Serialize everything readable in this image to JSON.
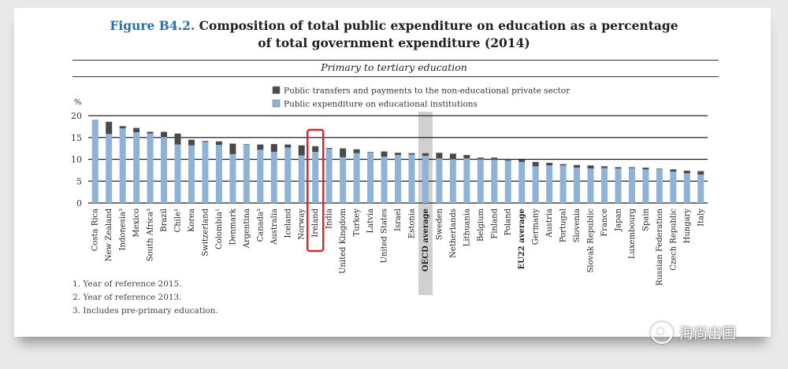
{
  "figure": {
    "label": "Figure B4.2.",
    "title_line1": "Composition of total public expenditure on education as a percentage",
    "title_line2": "of total government expenditure (2014)",
    "subtitle": "Primary to tertiary education"
  },
  "notes": [
    "1. Year of reference 2015.",
    "2. Year of reference 2013.",
    "3. Includes pre-primary education."
  ],
  "watermark": "海尚出国",
  "colors": {
    "institutions": "#8fb3d6",
    "transfers": "#4a4a4a",
    "highlight": "#d9262c",
    "oecd_band": "#d0d0d0"
  },
  "chart_data": {
    "type": "bar",
    "stacked": true,
    "ylabel": "%",
    "ylim": [
      0,
      20
    ],
    "yticks": [
      0,
      5,
      10,
      15,
      20
    ],
    "grid": "horizontal",
    "legend_position": "top-left",
    "highlighted_category": "Ireland",
    "shaded_category": "OECD average",
    "bold_categories": [
      "OECD average",
      "EU22 average"
    ],
    "categories": [
      "Costa Rica",
      "New Zealand",
      "Indonesia³",
      "Mexico",
      "South Africa³",
      "Brazil",
      "Chile¹",
      "Korea",
      "Switzerland",
      "Colombia¹",
      "Denmark",
      "Argentina",
      "Canada²",
      "Australia",
      "Iceland",
      "Norway",
      "Ireland",
      "India",
      "United Kingdom",
      "Turkey",
      "Latvia",
      "United States",
      "Israel",
      "Estonia",
      "OECD average",
      "Sweden",
      "Netherlands",
      "Lithuania",
      "Belgium",
      "Finland",
      "Poland",
      "EU22 average",
      "Germany",
      "Austria",
      "Portugal",
      "Slovenia",
      "Slovak Republic",
      "France",
      "Japan",
      "Luxembourg",
      "Spain",
      "Russian Federation",
      "Czech Republic",
      "Hungary",
      "Italy"
    ],
    "series": [
      {
        "name": "Public expenditure on educational institutions",
        "values": [
          19.1,
          15.8,
          17.1,
          16.2,
          15.9,
          15.1,
          13.4,
          13.2,
          14.0,
          13.3,
          11.2,
          13.4,
          12.2,
          11.7,
          12.7,
          10.9,
          11.7,
          12.4,
          10.5,
          11.4,
          11.6,
          10.6,
          11.0,
          11.1,
          10.8,
          10.2,
          10.0,
          10.2,
          10.0,
          9.9,
          9.7,
          9.4,
          8.4,
          8.6,
          8.6,
          8.1,
          7.9,
          8.0,
          7.9,
          8.0,
          7.7,
          7.8,
          7.2,
          6.8,
          6.5
        ]
      },
      {
        "name": "Public transfers and payments to the non-educational private sector",
        "values": [
          0.0,
          2.8,
          0.5,
          1.0,
          0.4,
          1.2,
          2.5,
          1.3,
          0.2,
          0.8,
          2.4,
          0.1,
          1.2,
          1.8,
          0.7,
          2.3,
          1.3,
          0.2,
          2.0,
          0.9,
          0.1,
          1.2,
          0.5,
          0.3,
          0.6,
          1.3,
          1.3,
          0.8,
          0.4,
          0.5,
          0.4,
          0.5,
          1.0,
          0.6,
          0.3,
          0.6,
          0.7,
          0.4,
          0.3,
          0.2,
          0.4,
          0.1,
          0.5,
          0.6,
          0.8
        ]
      }
    ]
  }
}
